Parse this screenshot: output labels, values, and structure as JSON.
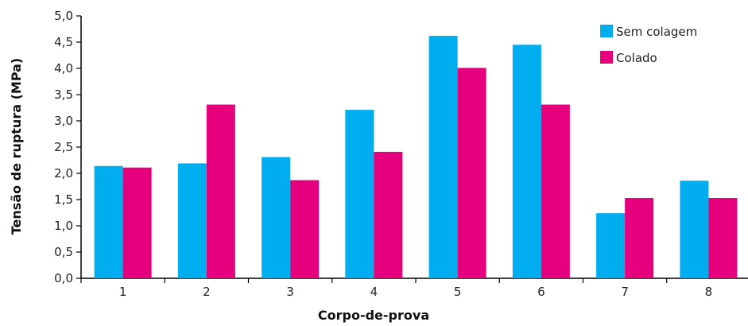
{
  "chart_data": {
    "type": "bar",
    "title": "",
    "xlabel": "Corpo-de-prova",
    "ylabel": "Tensão de ruptura (MPa)",
    "categories": [
      "1",
      "2",
      "3",
      "4",
      "5",
      "6",
      "7",
      "8"
    ],
    "series": [
      {
        "name": "Sem colagem",
        "color": "#00aeef",
        "values": [
          2.14,
          2.19,
          2.31,
          3.21,
          4.62,
          4.45,
          1.24,
          1.86
        ]
      },
      {
        "name": "Colado",
        "color": "#e6007e",
        "values": [
          2.11,
          3.31,
          1.87,
          2.41,
          4.01,
          3.31,
          1.53,
          1.53
        ]
      }
    ],
    "ylim": [
      0,
      5
    ],
    "yticks": [
      "0,0",
      "0,5",
      "1,0",
      "1,5",
      "2,0",
      "2,5",
      "3,0",
      "3,5",
      "4,0",
      "4,5",
      "5,0"
    ],
    "grid": false,
    "legend_position": "top-right"
  }
}
